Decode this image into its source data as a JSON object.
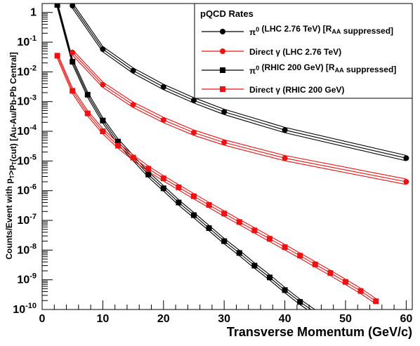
{
  "chart_data": {
    "type": "line",
    "title": "",
    "xlabel": "Transverse Momentum (GeV/c)",
    "ylabel": "Counts/Event with p_T>p_T(cut) [Au-Au/Pb-Pb Central]",
    "xlim": [
      0,
      61
    ],
    "ylim": [
      1e-10,
      2
    ],
    "y_scale": "log",
    "grid": false,
    "x_ticks": [
      "0",
      "10",
      "20",
      "30",
      "40",
      "50",
      "60"
    ],
    "y_ticks": [
      "10^-10",
      "10^-9",
      "10^-8",
      "10^-7",
      "10^-6",
      "10^-5",
      "10^-4",
      "10^-3",
      "10^-2",
      "10^-1",
      "1"
    ],
    "legend": {
      "title": "pQCD Rates",
      "position": "top-right",
      "entries": [
        "π0 (LHC 2.76 TeV) [RAA suppressed]",
        "Direct γ (LHC 2.76 TeV)",
        "π0 (RHIC 200 GeV) [RAA suppressed]",
        "Direct γ (RHIC 200 GeV)"
      ]
    },
    "series": [
      {
        "name": "π0 (LHC 2.76 TeV) [RAA suppressed]",
        "color": "#000000",
        "marker": "circle",
        "x": [
          5,
          10,
          15,
          20,
          25,
          30,
          40,
          60
        ],
        "y": [
          1.7,
          0.058,
          0.011,
          0.0031,
          0.0011,
          0.00045,
          0.00011,
          1.25e-05
        ]
      },
      {
        "name": "Direct γ (LHC 2.76 TeV)",
        "color": "#ee1111",
        "marker": "circle",
        "x": [
          5,
          10,
          15,
          20,
          25,
          30,
          40,
          60
        ],
        "y": [
          0.045,
          0.0037,
          0.00078,
          0.00024,
          9e-05,
          4.2e-05,
          1.25e-05,
          2e-06
        ]
      },
      {
        "name": "π0 (RHIC 200 GeV) [RAA suppressed]",
        "color": "#000000",
        "marker": "square",
        "x": [
          2.5,
          5,
          7.5,
          10,
          12.5,
          17.5,
          20,
          22.5,
          25,
          27.5,
          30,
          32.5,
          35,
          37.5,
          40,
          42.5,
          45
        ],
        "y": [
          1.8,
          0.022,
          0.0017,
          0.00023,
          4.5e-05,
          3.5e-06,
          1.2e-06,
          4e-07,
          1.5e-07,
          5.5e-08,
          2e-08,
          8e-09,
          3e-09,
          1.2e-09,
          4.5e-10,
          1.8e-10,
          8e-11
        ]
      },
      {
        "name": "Direct γ (RHIC 200 GeV)",
        "color": "#ee1111",
        "marker": "square",
        "x": [
          2.5,
          5,
          7.5,
          10,
          12.5,
          15,
          17.5,
          20,
          22.5,
          25,
          27.5,
          30,
          32.5,
          35,
          37.5,
          40,
          42.5,
          45,
          47.5,
          50,
          52.5,
          55
        ],
        "y": [
          0.035,
          0.0023,
          0.0004,
          0.0001,
          3.3e-05,
          1.3e-05,
          5.5e-06,
          2.6e-06,
          1.3e-06,
          6.5e-07,
          3.3e-07,
          1.7e-07,
          8.8e-08,
          4.6e-08,
          2.4e-08,
          1.25e-08,
          6.5e-09,
          3.3e-09,
          1.7e-09,
          8.5e-10,
          4.2e-10,
          1.9e-10
        ]
      }
    ]
  }
}
